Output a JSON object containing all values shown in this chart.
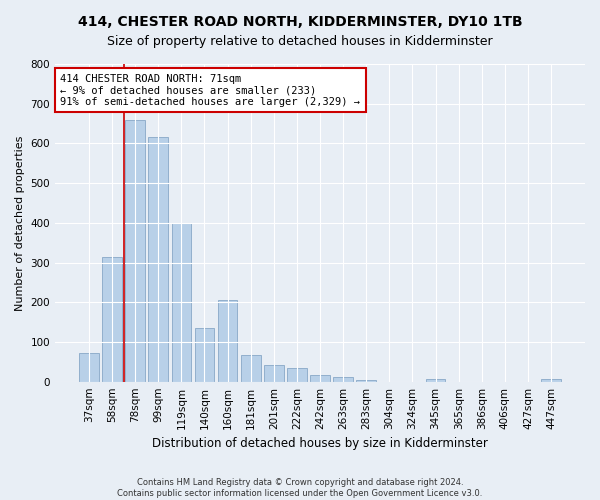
{
  "title": "414, CHESTER ROAD NORTH, KIDDERMINSTER, DY10 1TB",
  "subtitle": "Size of property relative to detached houses in Kidderminster",
  "xlabel": "Distribution of detached houses by size in Kidderminster",
  "ylabel": "Number of detached properties",
  "categories": [
    "37sqm",
    "58sqm",
    "78sqm",
    "99sqm",
    "119sqm",
    "140sqm",
    "160sqm",
    "181sqm",
    "201sqm",
    "222sqm",
    "242sqm",
    "263sqm",
    "283sqm",
    "304sqm",
    "324sqm",
    "345sqm",
    "365sqm",
    "386sqm",
    "406sqm",
    "427sqm",
    "447sqm"
  ],
  "values": [
    72,
    315,
    660,
    615,
    400,
    135,
    205,
    67,
    43,
    35,
    18,
    12,
    5,
    0,
    0,
    7,
    0,
    0,
    0,
    0,
    8
  ],
  "bar_color": "#b8d0e8",
  "bar_edge_color": "#7a9dbf",
  "vline_color": "#cc0000",
  "annotation_text": "414 CHESTER ROAD NORTH: 71sqm\n← 9% of detached houses are smaller (233)\n91% of semi-detached houses are larger (2,329) →",
  "annotation_box_color": "#ffffff",
  "annotation_box_edge_color": "#cc0000",
  "ylim": [
    0,
    800
  ],
  "yticks": [
    0,
    100,
    200,
    300,
    400,
    500,
    600,
    700,
    800
  ],
  "bg_color": "#e8eef5",
  "plot_bg_color": "#e8eef5",
  "footer_line1": "Contains HM Land Registry data © Crown copyright and database right 2024.",
  "footer_line2": "Contains public sector information licensed under the Open Government Licence v3.0.",
  "title_fontsize": 10,
  "subtitle_fontsize": 9,
  "xlabel_fontsize": 8.5,
  "ylabel_fontsize": 8,
  "tick_fontsize": 7.5,
  "annotation_fontsize": 7.5
}
